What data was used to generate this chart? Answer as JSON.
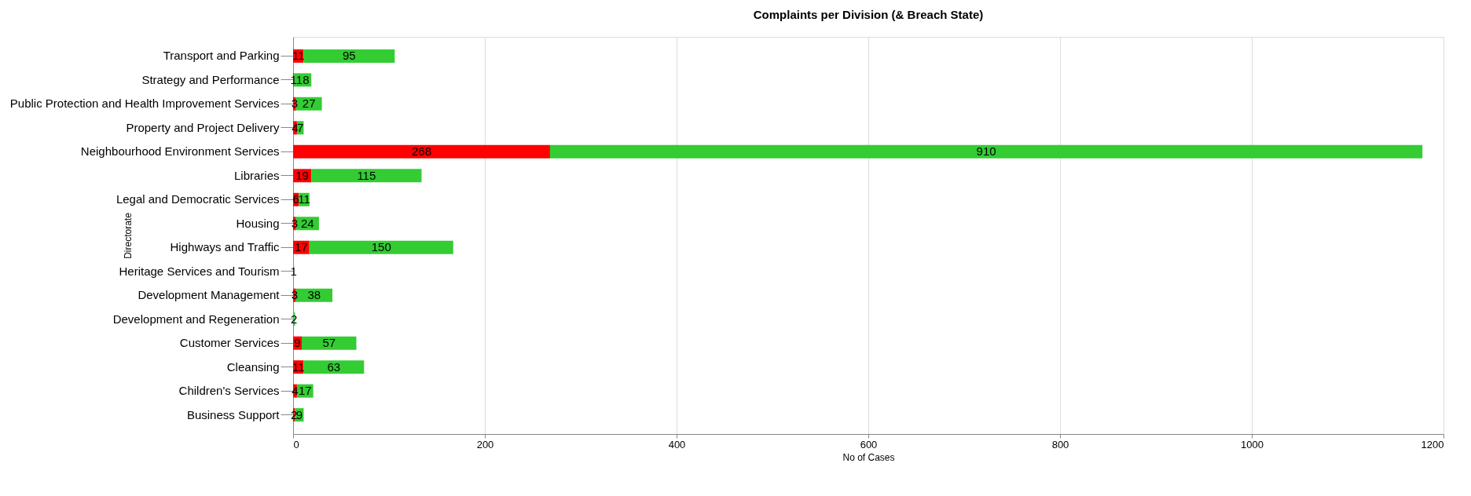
{
  "chart_data": {
    "type": "bar",
    "orientation": "horizontal",
    "stacked": true,
    "title": "Complaints per Division (& Breach State)",
    "xlabel": "No of Cases",
    "ylabel": "Directorate",
    "categories": [
      "Transport and Parking",
      "Strategy and Performance",
      "Public Protection and Health Improvement Services",
      "Property and Project Delivery",
      "Neighbourhood Environment Services",
      "Libraries",
      "Legal and Democratic Services",
      "Housing",
      "Highways and Traffic",
      "Heritage Services and Tourism",
      "Development Management",
      "Development and Regeneration",
      "Customer Services",
      "Cleansing",
      "Children's Services",
      "Business Support"
    ],
    "series": [
      {
        "color": "#ff0000",
        "values": [
          11,
          1,
          3,
          4,
          268,
          19,
          6,
          3,
          17,
          null,
          3,
          null,
          9,
          11,
          4,
          2
        ]
      },
      {
        "color": "#33cc33",
        "values": [
          95,
          18,
          27,
          7,
          910,
          115,
          11,
          24,
          150,
          1,
          38,
          2,
          57,
          63,
          17,
          9
        ]
      }
    ],
    "xlim": [
      0,
      1200
    ],
    "xticks": [
      0,
      200,
      400,
      600,
      800,
      1000,
      1200
    ],
    "grid": "x",
    "data_labels": true
  }
}
